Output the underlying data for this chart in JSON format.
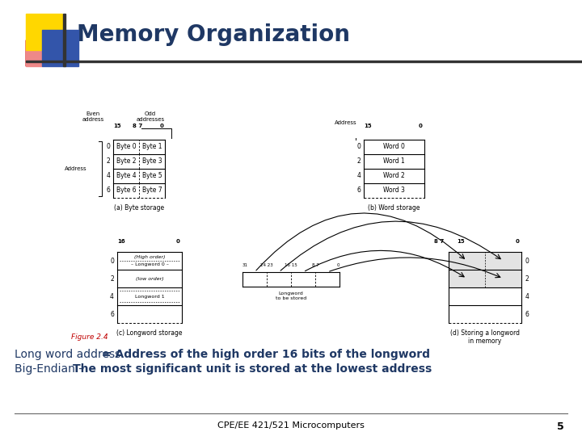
{
  "title": "Memory Organization",
  "title_color": "#1F3864",
  "background_color": "#ffffff",
  "bottom_text_line1_normal": "Long word address ",
  "bottom_text_line1_bold": "= Address of the high order 16 bits of the longword",
  "bottom_text_line2_normal": "Big-Endian – ",
  "bottom_text_line2_bold": "The most significant unit is stored at the lowest address",
  "footer_text": "CPE/EE 421/521 Microcomputers",
  "footer_page": "5",
  "figure_label": "Figure 2.4",
  "figure_label_color": "#C00000",
  "caption_a": "(a) Byte storage",
  "caption_b": "(b) Word storage",
  "caption_c": "(c) Longword storage",
  "caption_d": "(d) Storing a longword\nin memory",
  "text_color": "#1F3864"
}
